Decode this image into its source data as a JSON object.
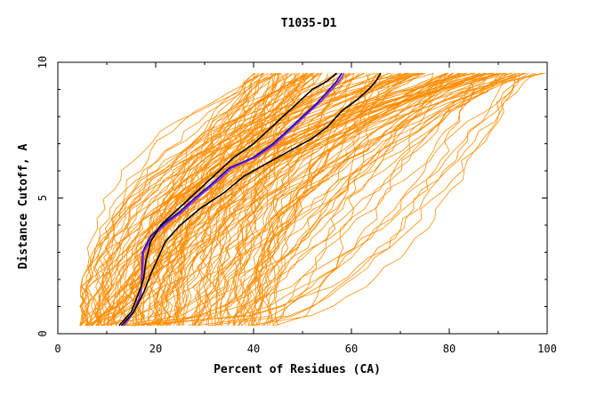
{
  "chart_data": {
    "type": "line",
    "title": "T1035-D1",
    "xlabel": "Percent of Residues (CA)",
    "ylabel": "Distance Cutoff, A",
    "xlim": [
      0,
      100
    ],
    "ylim": [
      0,
      10
    ],
    "x_ticks": [
      0,
      20,
      40,
      60,
      80,
      100
    ],
    "y_ticks": [
      0,
      5,
      10
    ],
    "grid": false,
    "legend": "none",
    "colors": {
      "background_models": "#ff8c00",
      "black_models": "#000000",
      "blue_model": "#0000cd",
      "purple_model": "#8a2be2"
    },
    "background_model_count": 160,
    "series": [
      {
        "color": "#0000cd",
        "points": [
          [
            13.5,
            0.3
          ],
          [
            15.5,
            0.8
          ],
          [
            17,
            1.5
          ],
          [
            17.2,
            2.3
          ],
          [
            17.3,
            3.0
          ],
          [
            19,
            3.6
          ],
          [
            22,
            4.1
          ],
          [
            25,
            4.5
          ],
          [
            28,
            5.0
          ],
          [
            32,
            5.6
          ],
          [
            35,
            6.1
          ],
          [
            40,
            6.5
          ],
          [
            44,
            7.0
          ],
          [
            47,
            7.5
          ],
          [
            50,
            8.0
          ],
          [
            53,
            8.5
          ],
          [
            55,
            8.9
          ],
          [
            57,
            9.3
          ],
          [
            58,
            9.6
          ]
        ]
      },
      {
        "color": "#8a2be2",
        "points": [
          [
            13.5,
            0.3
          ],
          [
            15.5,
            0.8
          ],
          [
            17,
            1.5
          ],
          [
            17.3,
            2.3
          ],
          [
            17.5,
            3.0
          ],
          [
            19.5,
            3.6
          ],
          [
            22.5,
            4.1
          ],
          [
            25.5,
            4.5
          ],
          [
            28.5,
            5.0
          ],
          [
            32.5,
            5.6
          ],
          [
            35.5,
            6.1
          ],
          [
            40.5,
            6.5
          ],
          [
            44.5,
            7.0
          ],
          [
            48,
            7.6
          ],
          [
            51,
            8.1
          ],
          [
            54,
            8.6
          ],
          [
            56,
            9.0
          ],
          [
            57.5,
            9.3
          ],
          [
            58.5,
            9.6
          ]
        ]
      },
      {
        "color": "#000000",
        "points": [
          [
            12.5,
            0.3
          ],
          [
            15,
            0.8
          ],
          [
            16.5,
            1.5
          ],
          [
            17.5,
            2.0
          ],
          [
            18,
            2.7
          ],
          [
            19,
            3.4
          ],
          [
            21,
            4.0
          ],
          [
            24,
            4.5
          ],
          [
            27,
            5.0
          ],
          [
            30,
            5.5
          ],
          [
            33,
            6.0
          ],
          [
            36,
            6.5
          ],
          [
            40,
            7.0
          ],
          [
            43,
            7.5
          ],
          [
            46,
            8.0
          ],
          [
            49,
            8.5
          ],
          [
            52,
            9.0
          ],
          [
            55,
            9.3
          ],
          [
            57,
            9.6
          ]
        ]
      },
      {
        "color": "#000000",
        "points": [
          [
            13,
            0.3
          ],
          [
            15.5,
            0.8
          ],
          [
            17.5,
            1.5
          ],
          [
            19,
            2.2
          ],
          [
            20.5,
            2.8
          ],
          [
            22,
            3.4
          ],
          [
            25,
            4.0
          ],
          [
            29,
            4.6
          ],
          [
            34,
            5.2
          ],
          [
            38,
            5.8
          ],
          [
            43,
            6.3
          ],
          [
            48,
            6.8
          ],
          [
            52,
            7.2
          ],
          [
            55,
            7.6
          ],
          [
            58,
            8.2
          ],
          [
            61,
            8.6
          ],
          [
            63.5,
            9.0
          ],
          [
            65,
            9.3
          ],
          [
            66,
            9.6
          ]
        ]
      }
    ]
  }
}
